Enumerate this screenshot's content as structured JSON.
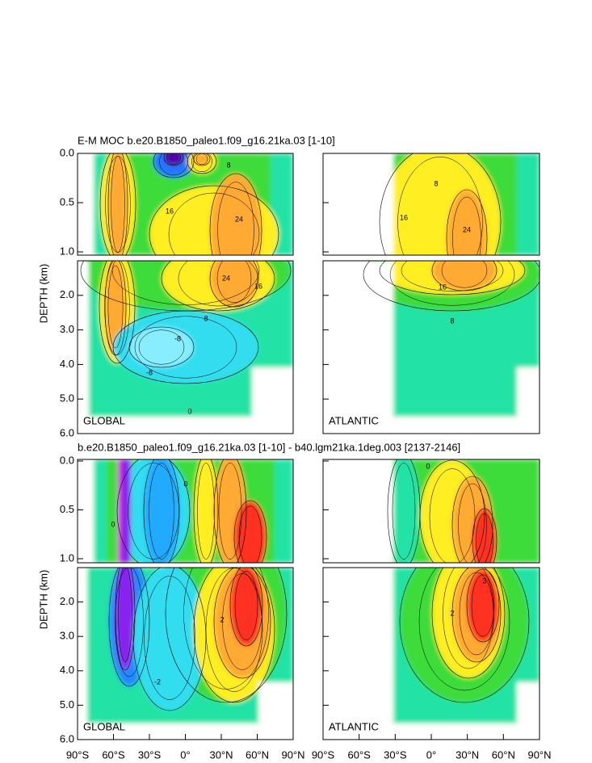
{
  "chart_data": [
    {
      "type": "contour",
      "title": "E-M MOC  b.e20.B1850_paleo1.f09_g16.21ka.03 [1-10]",
      "ylabel": "DEPTH (km)",
      "xlim": [
        -90,
        90
      ],
      "ylim": [
        0,
        6
      ],
      "yticks": [
        {
          "value": 0,
          "label": "0.0"
        },
        0.5,
        {
          "value": 1,
          "label": "1.0"
        },
        {
          "value": 2,
          "label": "2.0"
        },
        {
          "value": 3,
          "label": "3.0"
        },
        {
          "value": 4,
          "label": "4.0"
        },
        {
          "value": 5,
          "label": "5.0"
        },
        {
          "value": 6,
          "label": "6.0"
        }
      ],
      "panels": [
        {
          "region": "GLOBAL",
          "contour_labels": [
            8,
            16,
            24,
            24,
            16,
            8,
            -8,
            -8,
            0
          ]
        },
        {
          "region": "ATLANTIC",
          "contour_labels": [
            8,
            16,
            24,
            16,
            8
          ]
        }
      ]
    },
    {
      "type": "contour",
      "title": "b.e20.B1850_paleo1.f09_g16.21ka.03 [1-10] - b40.lgm21ka.1deg.003 [2137-2146]",
      "ylabel": "DEPTH (km)",
      "xlim": [
        -90,
        90
      ],
      "ylim": [
        0,
        6
      ],
      "yticks": [
        {
          "value": 0,
          "label": "0.0"
        },
        0.5,
        {
          "value": 1,
          "label": "1.0"
        },
        {
          "value": 2,
          "label": "2.0"
        },
        {
          "value": 3,
          "label": "3.0"
        },
        {
          "value": 4,
          "label": "4.0"
        },
        {
          "value": 5,
          "label": "5.0"
        },
        {
          "value": 6,
          "label": "6.0"
        }
      ],
      "xticks": [
        {
          "value": -90,
          "label": "90°S"
        },
        {
          "value": -60,
          "label": "60°S"
        },
        {
          "value": -30,
          "label": "30°S"
        },
        {
          "value": 0,
          "label": "0°"
        },
        {
          "value": 30,
          "label": "30°N"
        },
        {
          "value": 60,
          "label": "60°N"
        },
        {
          "value": 90,
          "label": "90°N"
        }
      ],
      "panels": [
        {
          "region": "GLOBAL",
          "contour_labels": [
            0,
            0,
            2,
            -2
          ]
        },
        {
          "region": "ATLANTIC",
          "contour_labels": [
            0,
            2,
            3
          ]
        }
      ]
    }
  ]
}
